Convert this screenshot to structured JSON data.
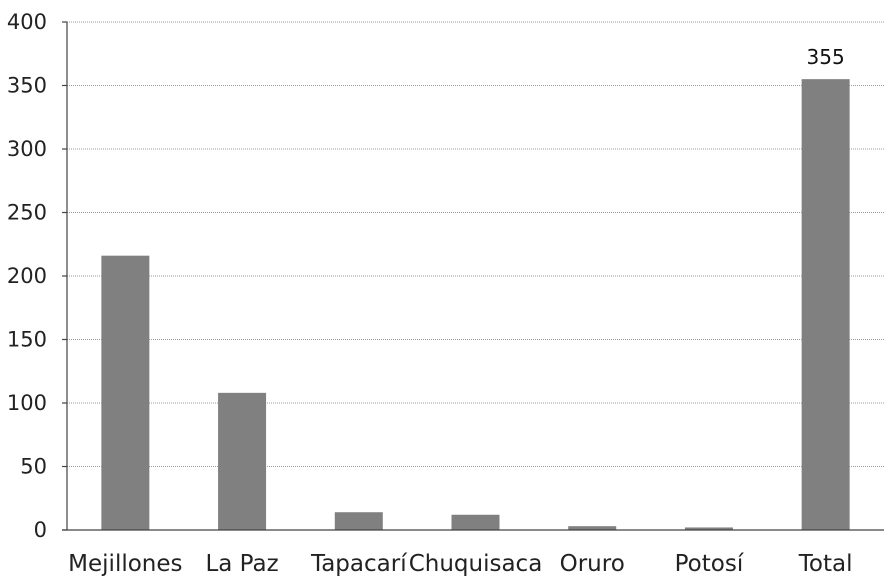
{
  "chart_data": {
    "type": "bar",
    "title": "",
    "xlabel": "",
    "ylabel": "",
    "categories": [
      "Mejillones",
      "La Paz",
      "Tapacarí",
      "Chuquisaca",
      "Oruro",
      "Potosí",
      "Total"
    ],
    "values": [
      216,
      108,
      14,
      12,
      3,
      2,
      355
    ],
    "ylim": [
      0,
      400
    ],
    "yticks": [
      0,
      50,
      100,
      150,
      200,
      250,
      300,
      350,
      400
    ],
    "grid": true,
    "legend": "none",
    "data_labels": [
      {
        "category": "Total",
        "text": "355"
      }
    ],
    "bar_color": "#808080",
    "grid_color": "#9a9a9a",
    "text_color": "#222222"
  }
}
